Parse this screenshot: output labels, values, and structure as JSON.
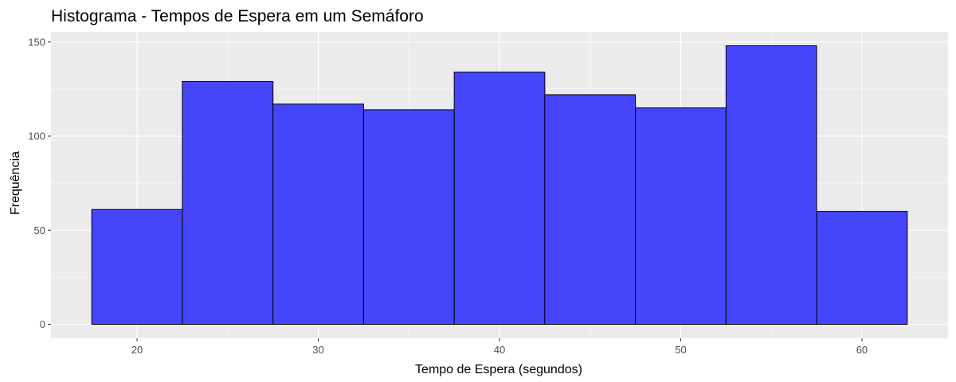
{
  "chart_data": {
    "type": "bar",
    "title": "Histograma - Tempos de Espera em um Semáforo",
    "xlabel": "Tempo de Espera (segundos)",
    "ylabel": "Frequência",
    "bins": [
      {
        "start": 17.5,
        "end": 22.5,
        "value": 61
      },
      {
        "start": 22.5,
        "end": 27.5,
        "value": 129
      },
      {
        "start": 27.5,
        "end": 32.5,
        "value": 117
      },
      {
        "start": 32.5,
        "end": 37.5,
        "value": 114
      },
      {
        "start": 37.5,
        "end": 42.5,
        "value": 134
      },
      {
        "start": 42.5,
        "end": 47.5,
        "value": 122
      },
      {
        "start": 47.5,
        "end": 52.5,
        "value": 115
      },
      {
        "start": 52.5,
        "end": 57.5,
        "value": 148
      },
      {
        "start": 57.5,
        "end": 62.5,
        "value": 60
      }
    ],
    "xlim": [
      15.25,
      64.75
    ],
    "ylim": [
      -7.4,
      155.4
    ],
    "x_ticks": [
      20,
      30,
      40,
      50,
      60
    ],
    "x_tick_labels": [
      "20",
      "30",
      "40",
      "50",
      "60"
    ],
    "y_ticks": [
      0,
      50,
      100,
      150
    ],
    "y_tick_labels": [
      "0",
      "50",
      "100",
      "150"
    ],
    "bar_color": "#4545fc",
    "bar_border_color": "#000000",
    "panel_color": "#ebebeb",
    "grid": true,
    "legend": "none"
  }
}
